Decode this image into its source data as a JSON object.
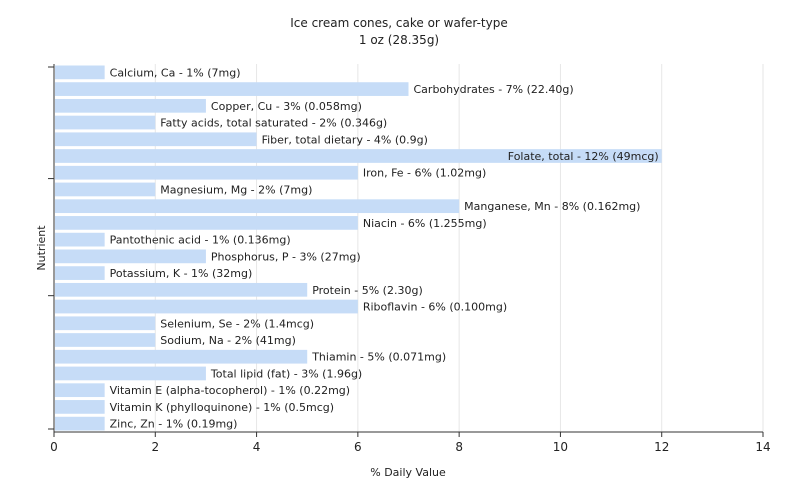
{
  "chart_data": {
    "type": "bar",
    "orientation": "horizontal",
    "title": "Ice cream cones, cake or wafer-type",
    "subtitle": "1 oz (28.35g)",
    "xlabel": "% Daily Value",
    "ylabel": "Nutrient",
    "xlim": [
      0,
      14
    ],
    "xticks": [
      0,
      2,
      4,
      6,
      8,
      10,
      12,
      14
    ],
    "grid": "vertical",
    "bar_color": "#c6dcf7",
    "categories": [
      "Calcium, Ca",
      "Carbohydrates",
      "Copper, Cu",
      "Fatty acids, total saturated",
      "Fiber, total dietary",
      "Folate, total",
      "Iron, Fe",
      "Magnesium, Mg",
      "Manganese, Mn",
      "Niacin",
      "Pantothenic acid",
      "Phosphorus, P",
      "Potassium, K",
      "Protein",
      "Riboflavin",
      "Selenium, Se",
      "Sodium, Na",
      "Thiamin",
      "Total lipid (fat)",
      "Vitamin E (alpha-tocopherol)",
      "Vitamin K (phylloquinone)",
      "Zinc, Zn"
    ],
    "values": [
      1,
      7,
      3,
      2,
      4,
      12,
      6,
      2,
      8,
      6,
      1,
      3,
      1,
      5,
      6,
      2,
      2,
      5,
      3,
      1,
      1,
      1
    ],
    "labels": [
      "Calcium, Ca - 1% (7mg)",
      "Carbohydrates - 7% (22.40g)",
      "Copper, Cu - 3% (0.058mg)",
      "Fatty acids, total saturated - 2% (0.346g)",
      "Fiber, total dietary - 4% (0.9g)",
      "Folate, total - 12% (49mcg)",
      "Iron, Fe - 6% (1.02mg)",
      "Magnesium, Mg - 2% (7mg)",
      "Manganese, Mn - 8% (0.162mg)",
      "Niacin - 6% (1.255mg)",
      "Pantothenic acid - 1% (0.136mg)",
      "Phosphorus, P - 3% (27mg)",
      "Potassium, K - 1% (32mg)",
      "Protein - 5% (2.30g)",
      "Riboflavin - 6% (0.100mg)",
      "Selenium, Se - 2% (1.4mcg)",
      "Sodium, Na - 2% (41mg)",
      "Thiamin - 5% (0.071mg)",
      "Total lipid (fat) - 3% (1.96g)",
      "Vitamin E (alpha-tocopherol) - 1% (0.22mg)",
      "Vitamin K (phylloquinone) - 1% (0.5mcg)",
      "Zinc, Zn - 1% (0.19mg)"
    ]
  }
}
